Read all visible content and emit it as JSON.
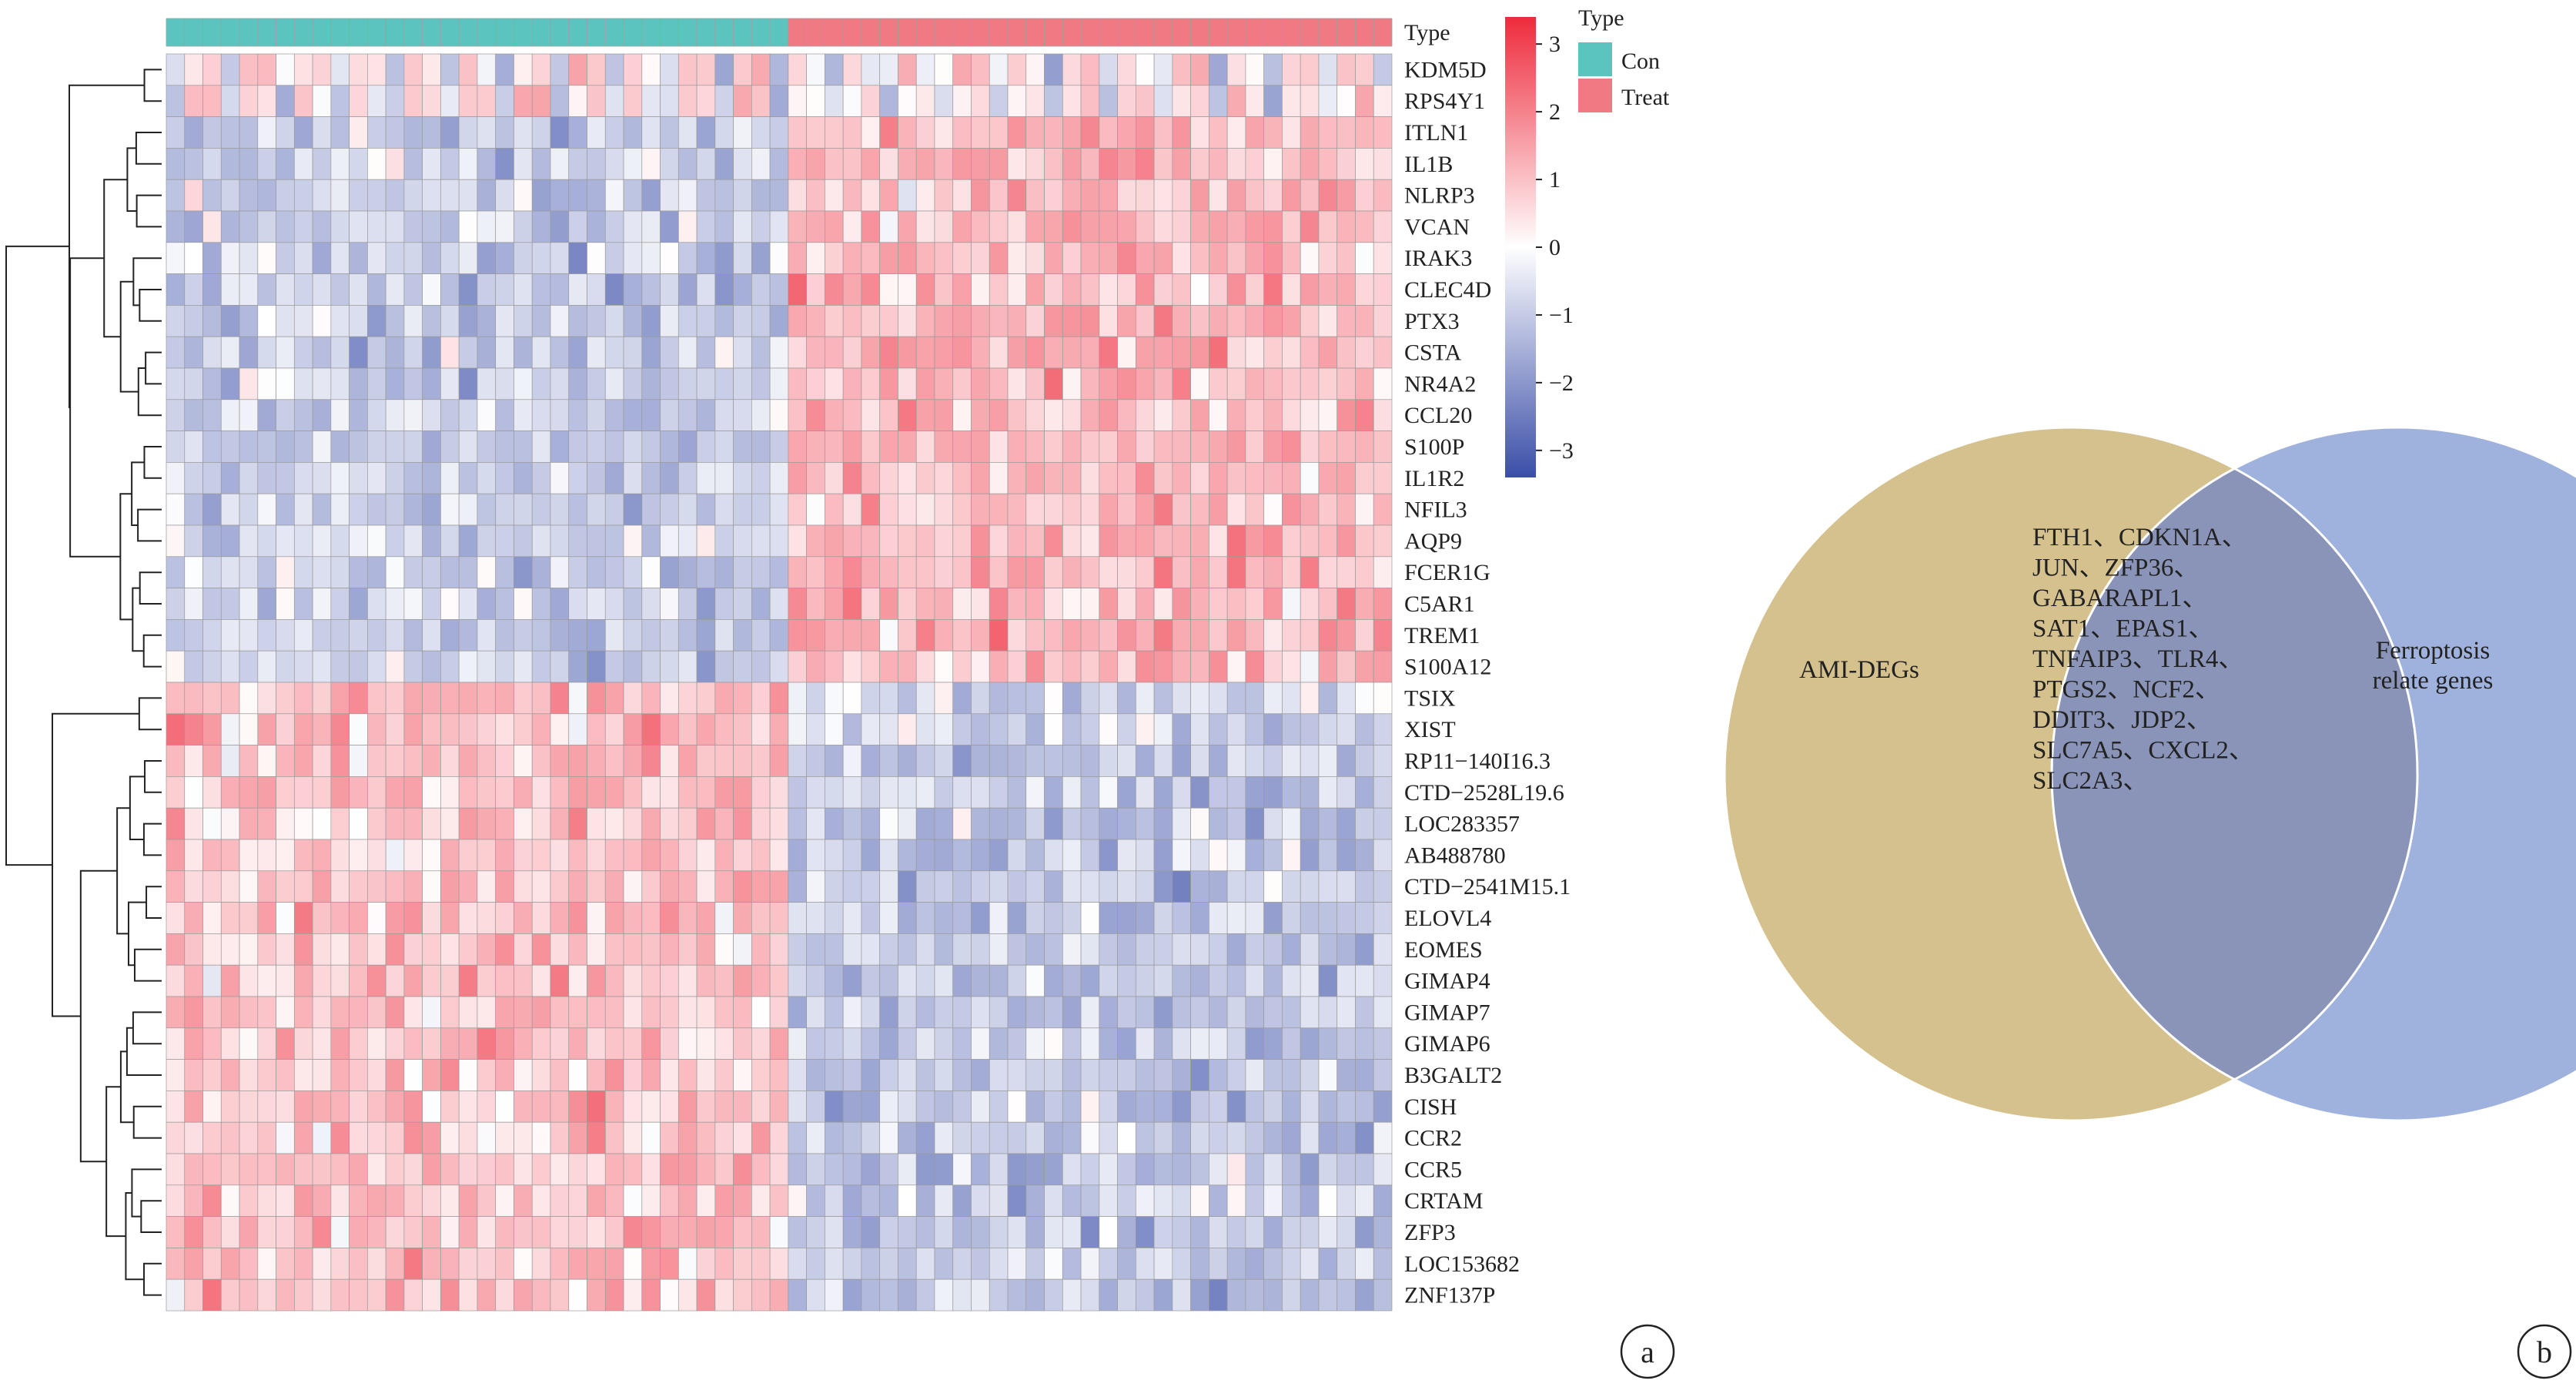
{
  "figure": {
    "panel_a_label": "a",
    "panel_b_label": "b"
  },
  "chart_data": [
    {
      "type": "heatmap",
      "annotation": {
        "title": "Type",
        "groups": [
          {
            "name": "Con",
            "color": "#5cc4be",
            "count": 34
          },
          {
            "name": "Treat",
            "color": "#f07a84",
            "count": 33
          }
        ]
      },
      "colorbar": {
        "ticks": [
          "3",
          "2",
          "1",
          "0",
          "−1",
          "−2",
          "−3"
        ],
        "range": [
          -3.4,
          3.4
        ],
        "low_color": "#3b4ea8",
        "mid_color": "#ffffff",
        "high_color": "#ee2b3c"
      },
      "genes": [
        "KDM5D",
        "RPS4Y1",
        "ITLN1",
        "IL1B",
        "NLRP3",
        "VCAN",
        "IRAK3",
        "CLEC4D",
        "PTX3",
        "CSTA",
        "NR4A2",
        "CCL20",
        "S100P",
        "IL1R2",
        "NFIL3",
        "AQP9",
        "FCER1G",
        "C5AR1",
        "TREM1",
        "S100A12",
        "TSIX",
        "XIST",
        "RP11−140I16.3",
        "CTD−2528L19.6",
        "LOC283357",
        "AB488780",
        "CTD−2541M15.1",
        "ELOVL4",
        "EOMES",
        "GIMAP4",
        "GIMAP7",
        "GIMAP6",
        "B3GALT2",
        "CISH",
        "CCR2",
        "CCR5",
        "CRTAM",
        "ZFP3",
        "LOC153682",
        "ZNF137P"
      ],
      "gene_trend_treat_vs_con": [
        0,
        0,
        1,
        1,
        1,
        1,
        1,
        1,
        1,
        1,
        1,
        1,
        1,
        1,
        1,
        1,
        1,
        1,
        1,
        1,
        2,
        2,
        -1,
        -1,
        -1,
        -1,
        -1,
        -1,
        -1,
        -1,
        -1,
        -1,
        -1,
        -1,
        -1,
        -1,
        -1,
        -1,
        -1,
        -1
      ]
    },
    {
      "type": "venn",
      "sets": [
        {
          "name": "AMI-DEGs",
          "color": "#d4c18e"
        },
        {
          "name_lines": [
            "Ferroptosis",
            "relate genes"
          ],
          "color": "#9fb1dd"
        }
      ],
      "intersection_color": "#8a94b8",
      "intersection_lines": [
        "FTH1、CDKN1A、",
        "JUN、ZFP36、",
        "GABARAPL1、",
        "SAT1、EPAS1、",
        "TNFAIP3、TLR4、",
        "PTGS2、NCF2、",
        "DDIT3、JDP2、",
        "SLC7A5、CXCL2、",
        "SLC2A3、"
      ]
    }
  ]
}
